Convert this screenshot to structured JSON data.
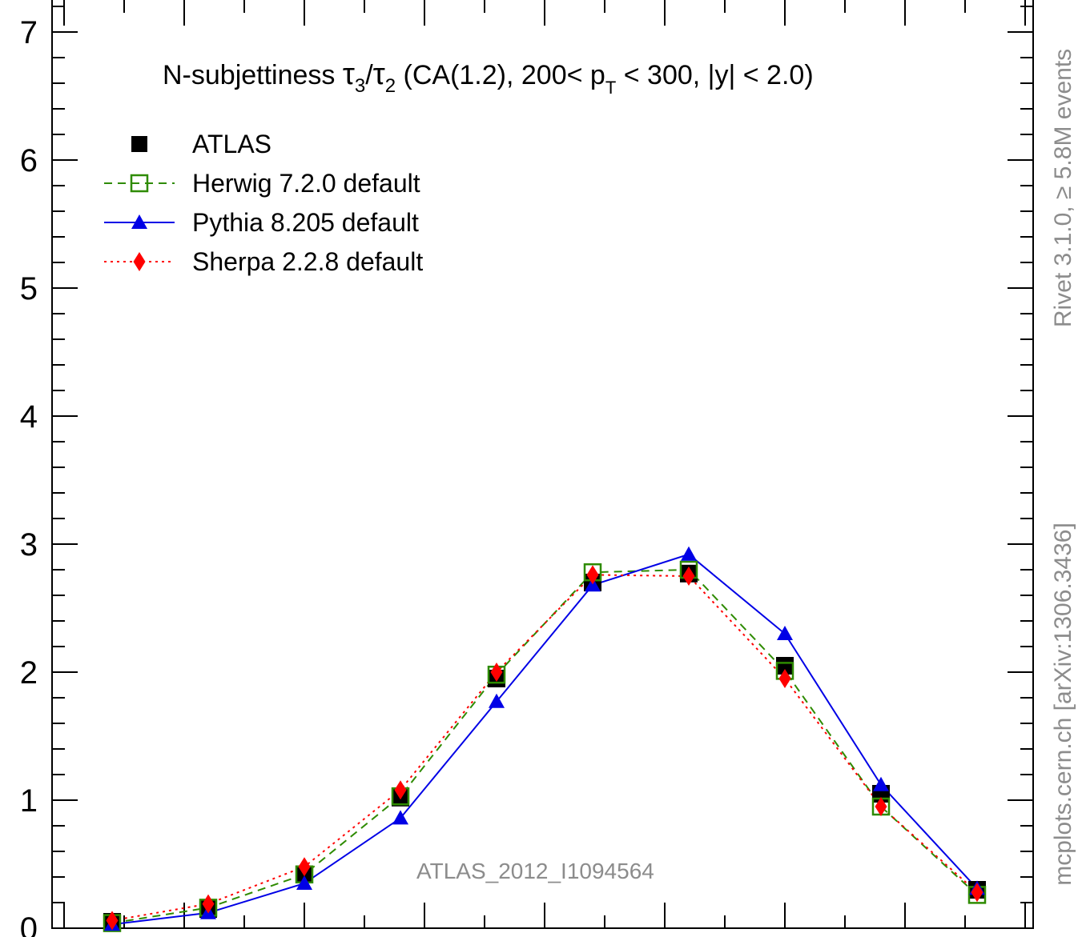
{
  "chart_data": {
    "type": "line",
    "title": {
      "main": "N-subjettiness ",
      "tau3": "τ",
      "sub3": "3",
      "slash": "/",
      "tau2": "τ",
      "sub2": "2",
      "rest1": " (CA(1.2), 200< p",
      "subT": "T",
      "rest2": " < 300, |y| < 2.0)"
    },
    "ylim": [
      0,
      7
    ],
    "xlim": [
      0,
      1
    ],
    "yticks": [
      "0",
      "1",
      "2",
      "3",
      "4",
      "5",
      "6",
      "7"
    ],
    "legend_placement": "top-left",
    "x": [
      0.05,
      0.15,
      0.25,
      0.35,
      0.45,
      0.55,
      0.65,
      0.75,
      0.85,
      0.95
    ],
    "series": [
      {
        "name": "ATLAS",
        "color": "#000000",
        "marker": "filled-square",
        "line": "none",
        "values": [
          0.05,
          0.15,
          0.42,
          1.02,
          1.95,
          2.7,
          2.77,
          2.05,
          1.05,
          0.3
        ]
      },
      {
        "name": "Herwig 7.2.0 default",
        "color": "#2e8b00",
        "marker": "open-square",
        "line": "dashed",
        "values": [
          0.04,
          0.16,
          0.42,
          1.03,
          1.98,
          2.78,
          2.8,
          2.01,
          0.95,
          0.26
        ]
      },
      {
        "name": "Pythia 8.205 default",
        "color": "#0000e6",
        "marker": "filled-triangle",
        "line": "solid",
        "values": [
          0.03,
          0.12,
          0.35,
          0.86,
          1.77,
          2.68,
          2.92,
          2.3,
          1.12,
          0.31
        ]
      },
      {
        "name": "Sherpa 2.2.8 default",
        "color": "#ff0000",
        "marker": "filled-diamond",
        "line": "dotted",
        "values": [
          0.06,
          0.19,
          0.48,
          1.08,
          2.0,
          2.76,
          2.75,
          1.95,
          0.95,
          0.28
        ]
      }
    ],
    "annotations": {
      "analysis": "ATLAS_2012_I1094564",
      "rivet": "Rivet 3.1.0, ≥ 5.8M events",
      "mcplots": "mcplots.cern.ch [arXiv:1306.3436]"
    }
  }
}
